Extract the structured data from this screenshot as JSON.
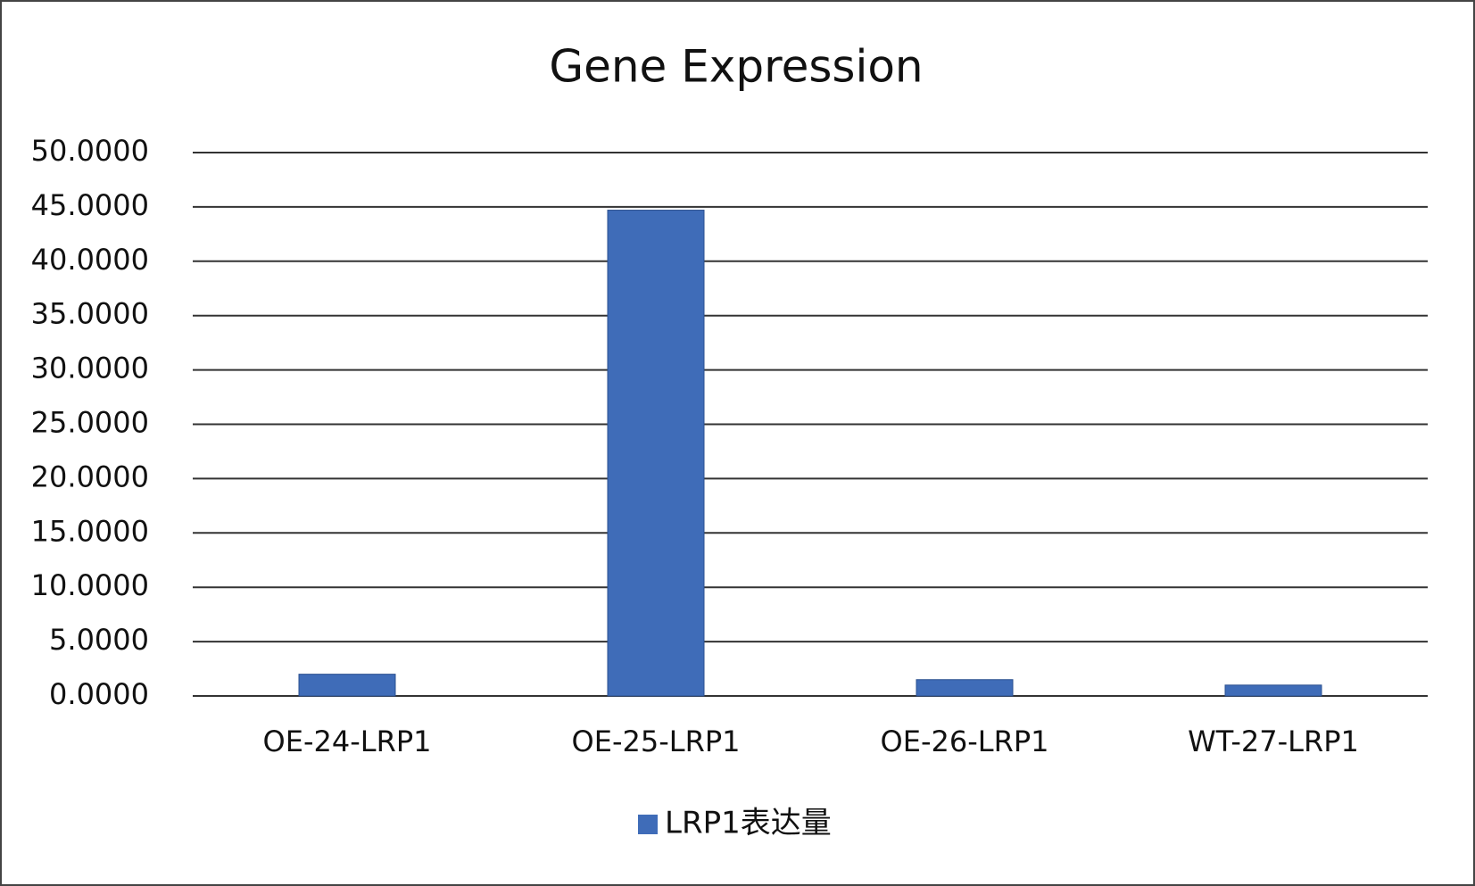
{
  "chart_data": {
    "type": "bar",
    "title": "Gene Expression",
    "categories": [
      "OE-24-LRP1",
      "OE-25-LRP1",
      "OE-26-LRP1",
      "WT-27-LRP1"
    ],
    "series": [
      {
        "name": "LRP1表达量",
        "color": "#3f6cb8",
        "values": [
          2.0,
          44.7,
          1.5,
          1.0
        ]
      }
    ],
    "ylim": [
      0,
      50
    ],
    "yticks": [
      {
        "value": 0,
        "label": "0.0000"
      },
      {
        "value": 5,
        "label": "5.0000"
      },
      {
        "value": 10,
        "label": "10.0000"
      },
      {
        "value": 15,
        "label": "15.0000"
      },
      {
        "value": 20,
        "label": "20.0000"
      },
      {
        "value": 25,
        "label": "25.0000"
      },
      {
        "value": 30,
        "label": "30.0000"
      },
      {
        "value": 35,
        "label": "35.0000"
      },
      {
        "value": 40,
        "label": "40.0000"
      },
      {
        "value": 45,
        "label": "45.0000"
      },
      {
        "value": 50,
        "label": "50.0000"
      }
    ],
    "grid": true,
    "legend": "bottom"
  }
}
